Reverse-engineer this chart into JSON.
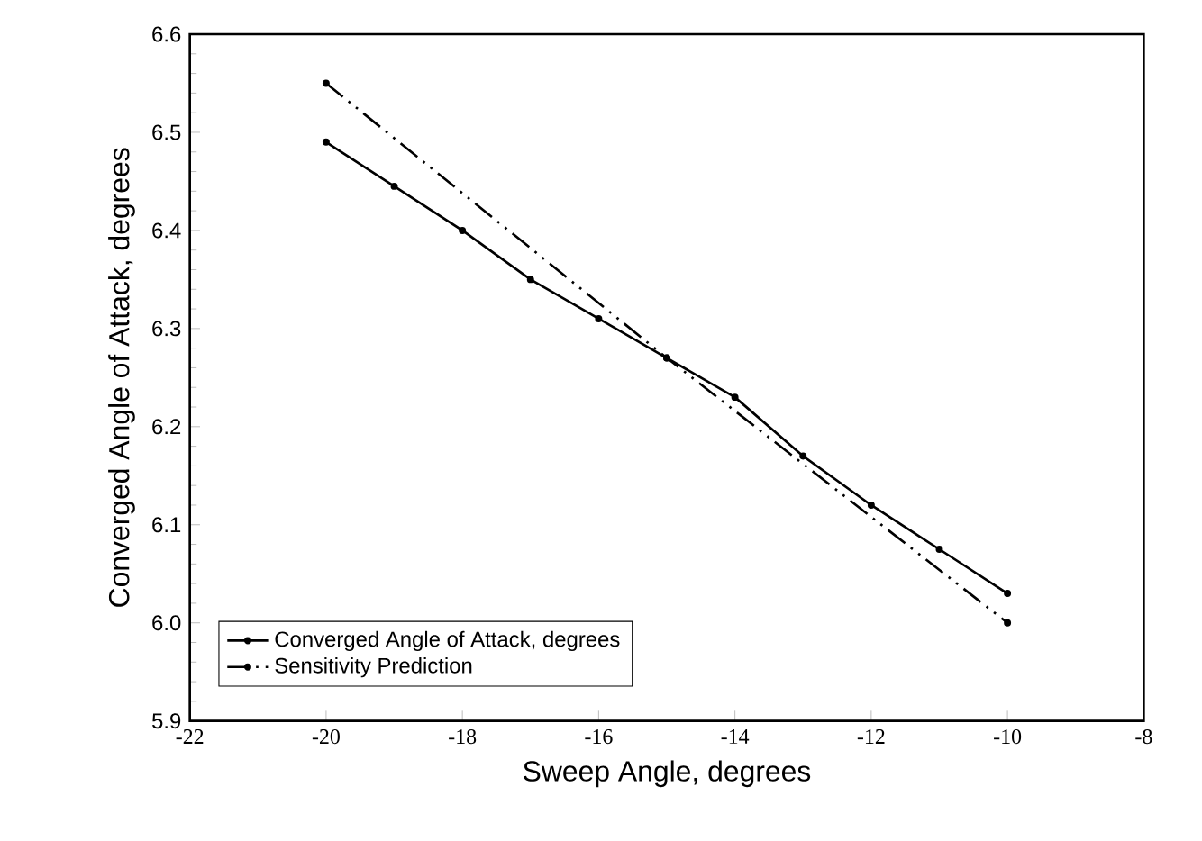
{
  "chart_data": {
    "type": "line",
    "xlabel": "Sweep Angle, degrees",
    "ylabel": "Converged Angle of Attack,  degrees",
    "xlim": [
      -22,
      -8
    ],
    "xticks": [
      -22,
      -20,
      -18,
      -16,
      -14,
      -12,
      -10,
      -8
    ],
    "ylim": [
      5.9,
      6.6
    ],
    "yticks": [
      5.9,
      {
        "value": 6,
        "label": "6.0"
      },
      6.1,
      6.2,
      6.3,
      6.4,
      6.5,
      6.6
    ],
    "legend": "bottom left",
    "grid": false,
    "marker": "circle",
    "series": [
      {
        "name": "Converged Angle of Attack,  degrees",
        "color": "#000000",
        "line_style": "solid",
        "x": [
          -20,
          -19,
          -18,
          -17,
          -16,
          -15,
          -14,
          -13,
          -12,
          -11,
          -10
        ],
        "values": [
          6.49,
          6.445,
          6.4,
          6.35,
          6.31,
          6.27,
          6.23,
          6.17,
          6.12,
          6.075,
          6.03
        ]
      },
      {
        "name": "Sensitivity Prediction",
        "color": "#000000",
        "line_style": "dashdotdot",
        "x": [
          -20,
          -15,
          -10
        ],
        "values": [
          6.55,
          6.27,
          6.0
        ]
      }
    ]
  }
}
